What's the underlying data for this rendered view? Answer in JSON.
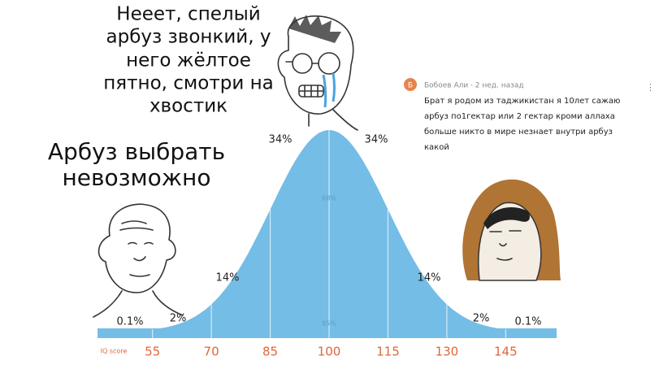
{
  "top_caption": [
    "Нееет, спелый",
    "арбуз звонкий, у",
    "него жёлтое",
    "пятно, смотри на",
    "хвостик"
  ],
  "left_caption": [
    "Арбуз выбрать",
    "невозможно"
  ],
  "comment": {
    "avatar": "Б",
    "author": "Бобоев Али · 2 нед. назад",
    "menu": "⋮",
    "lines": [
      "Брат я родом из таджикистан я 10лет сажаю",
      "арбуз по1гектар или 2 гектар кроми аллаха",
      "больше никто в мире незнает внутри арбуз",
      "какой"
    ]
  },
  "curve": {
    "axis_label": "IQ score",
    "ticks": [
      55,
      70,
      85,
      100,
      115,
      130,
      145
    ],
    "inner_band": "68%",
    "outer_band": "95%",
    "share_labels": [
      "0.1%",
      "2%",
      "14%",
      "34%",
      "34%",
      "14%",
      "2%",
      "0.1%"
    ]
  }
}
